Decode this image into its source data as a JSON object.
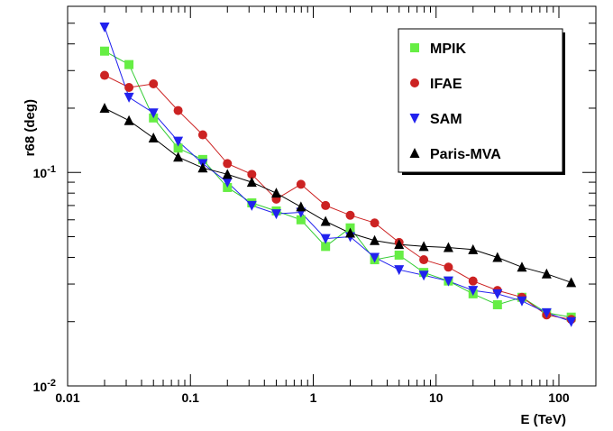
{
  "chart_data": {
    "type": "line",
    "xlabel": "E (TeV)",
    "ylabel": "r68 (deg)",
    "x_scale": "log",
    "y_scale": "log",
    "xlim": [
      0.01,
      200
    ],
    "ylim": [
      0.01,
      0.6
    ],
    "x_ticks": [
      {
        "value": 0.01,
        "label": "0.01"
      },
      {
        "value": 0.1,
        "label": "0.1"
      },
      {
        "value": 1,
        "label": "1"
      },
      {
        "value": 10,
        "label": "10"
      },
      {
        "value": 100,
        "label": "100"
      }
    ],
    "y_ticks": [
      {
        "value": 0.01,
        "base": "10",
        "exp": "-2"
      },
      {
        "value": 0.1,
        "base": "10",
        "exp": "-1"
      }
    ],
    "legend_position": "top-right",
    "grid": false,
    "x": [
      0.02,
      0.0316,
      0.05,
      0.0794,
      0.126,
      0.2,
      0.316,
      0.5,
      0.794,
      1.26,
      2.0,
      3.16,
      5.0,
      7.94,
      12.6,
      20.0,
      31.6,
      50.0,
      79.4,
      126
    ],
    "series": [
      {
        "name": "MPIK",
        "color": "#66ee44",
        "line_color": "#33cc33",
        "marker": "square",
        "values": [
          0.37,
          0.32,
          0.18,
          0.13,
          0.115,
          0.085,
          0.072,
          0.066,
          0.06,
          0.045,
          0.055,
          0.039,
          0.041,
          0.034,
          0.031,
          0.027,
          0.024,
          0.026,
          0.022,
          0.021
        ]
      },
      {
        "name": "IFAE",
        "color": "#cc2222",
        "line_color": "#cc2222",
        "marker": "circle",
        "values": [
          0.285,
          0.25,
          0.26,
          0.195,
          0.15,
          0.11,
          0.098,
          0.075,
          0.088,
          0.07,
          0.063,
          0.058,
          0.047,
          0.039,
          0.036,
          0.031,
          0.028,
          0.026,
          0.0215,
          0.0205
        ]
      },
      {
        "name": "SAM",
        "color": "#2222ee",
        "line_color": "#2222ee",
        "marker": "triangle-down",
        "values": [
          0.48,
          0.225,
          0.19,
          0.14,
          0.11,
          0.09,
          0.07,
          0.064,
          0.065,
          0.049,
          0.05,
          0.04,
          0.035,
          0.033,
          0.031,
          0.028,
          0.027,
          0.025,
          0.022,
          0.02
        ]
      },
      {
        "name": "Paris-MVA",
        "color": "#000000",
        "line_color": "#000000",
        "marker": "triangle-up",
        "values": [
          0.2,
          0.175,
          0.145,
          0.118,
          0.105,
          0.098,
          0.09,
          0.08,
          0.069,
          0.059,
          0.052,
          0.048,
          0.046,
          0.045,
          0.0445,
          0.0435,
          0.04,
          0.036,
          0.0335,
          0.0305
        ]
      }
    ]
  }
}
